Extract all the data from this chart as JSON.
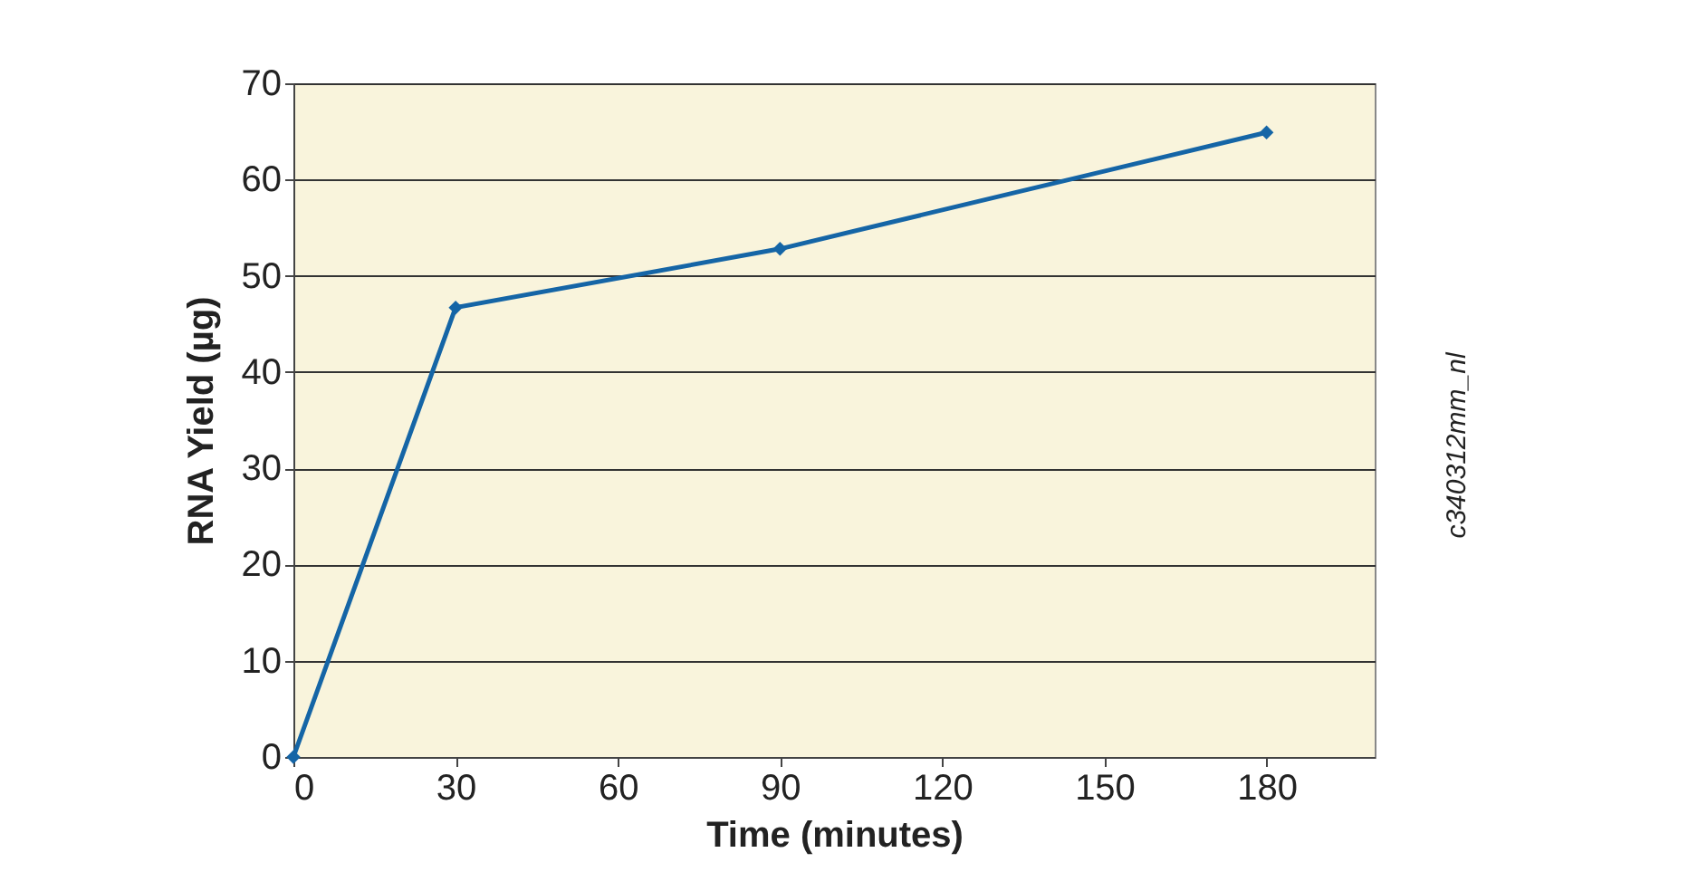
{
  "chart_data": {
    "type": "line",
    "xlabel": "Time (minutes)",
    "ylabel": "RNA Yield (µg)",
    "x": [
      0,
      30,
      90,
      180
    ],
    "series": [
      {
        "color": "#1565a6",
        "values": [
          0,
          46.7,
          52.8,
          64.9
        ]
      }
    ],
    "xlim": [
      0,
      200
    ],
    "xticks": [
      0,
      30,
      60,
      90,
      120,
      150,
      180
    ],
    "ylim": [
      0,
      70
    ],
    "yticks": [
      0,
      10,
      20,
      30,
      40,
      50,
      60,
      70
    ],
    "grid": "y",
    "marker": "diamond",
    "line_style": "solid",
    "annotations": [
      "c340312mm_nl"
    ]
  }
}
